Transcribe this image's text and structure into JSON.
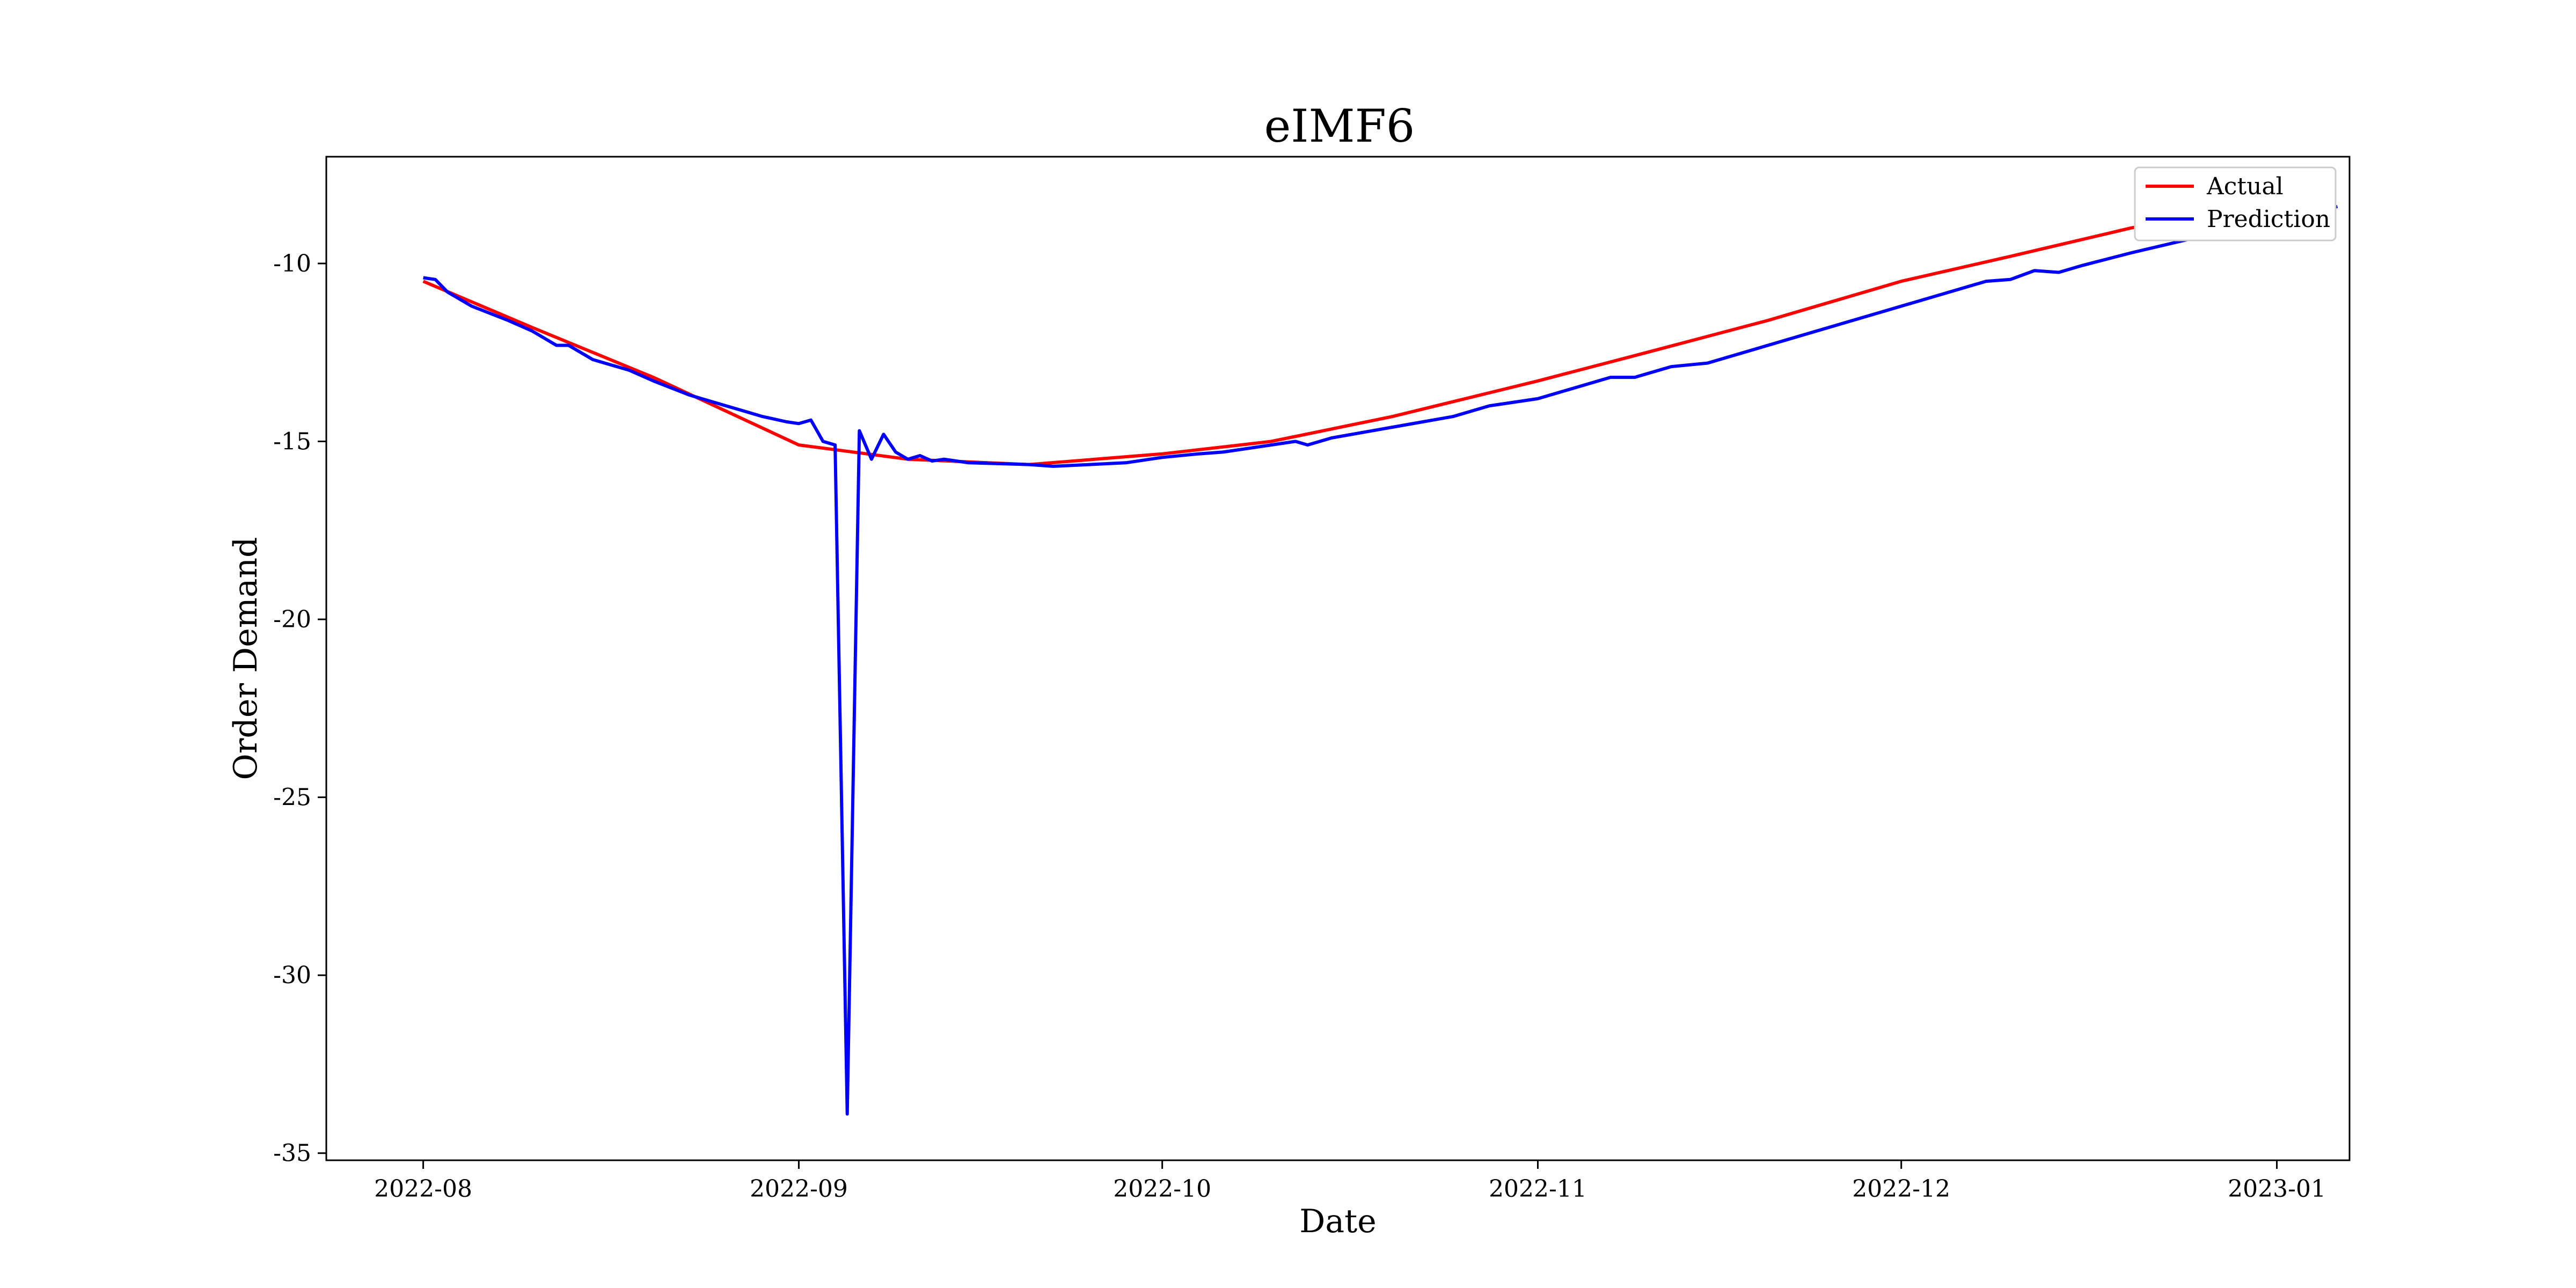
{
  "chart_data": {
    "type": "line",
    "title": "eIMF6",
    "xlabel": "Date",
    "ylabel": "Order Demand",
    "x_ticks": [
      "2022-08",
      "2022-09",
      "2022-10",
      "2022-11",
      "2022-12",
      "2023-01"
    ],
    "y_ticks": [
      "-10",
      "-15",
      "-20",
      "-25",
      "-30",
      "-35"
    ],
    "xlim": [
      "2022-07-24",
      "2023-01-07"
    ],
    "ylim": [
      -35.2,
      -7.0
    ],
    "legend_position": "top-right",
    "series": [
      {
        "name": "Actual",
        "color": "#ff0000",
        "points": [
          [
            "2022-08-01",
            -10.5
          ],
          [
            "2022-08-10",
            -11.8
          ],
          [
            "2022-08-20",
            -13.2
          ],
          [
            "2022-09-01",
            -15.1
          ],
          [
            "2022-09-10",
            -15.5
          ],
          [
            "2022-09-20",
            -15.65
          ],
          [
            "2022-10-01",
            -15.35
          ],
          [
            "2022-10-10",
            -15.0
          ],
          [
            "2022-10-20",
            -14.3
          ],
          [
            "2022-11-01",
            -13.3
          ],
          [
            "2022-11-10",
            -12.5
          ],
          [
            "2022-11-20",
            -11.6
          ],
          [
            "2022-12-01",
            -10.5
          ],
          [
            "2022-12-10",
            -9.8
          ],
          [
            "2022-12-20",
            -9.0
          ],
          [
            "2023-01-01",
            -8.3
          ]
        ]
      },
      {
        "name": "Prediction",
        "color": "#0000ff",
        "points": [
          [
            "2022-08-01",
            -10.4
          ],
          [
            "2022-08-02",
            -10.45
          ],
          [
            "2022-08-03",
            -10.8
          ],
          [
            "2022-08-05",
            -11.2
          ],
          [
            "2022-08-08",
            -11.6
          ],
          [
            "2022-08-10",
            -11.9
          ],
          [
            "2022-08-12",
            -12.3
          ],
          [
            "2022-08-13",
            -12.3
          ],
          [
            "2022-08-15",
            -12.7
          ],
          [
            "2022-08-18",
            -13.0
          ],
          [
            "2022-08-20",
            -13.3
          ],
          [
            "2022-08-23",
            -13.7
          ],
          [
            "2022-08-26",
            -14.0
          ],
          [
            "2022-08-29",
            -14.3
          ],
          [
            "2022-08-31",
            -14.45
          ],
          [
            "2022-09-01",
            -14.5
          ],
          [
            "2022-09-02",
            -14.4
          ],
          [
            "2022-09-03",
            -15.0
          ],
          [
            "2022-09-04",
            -15.1
          ],
          [
            "2022-09-05",
            -33.9
          ],
          [
            "2022-09-06",
            -14.7
          ],
          [
            "2022-09-07",
            -15.5
          ],
          [
            "2022-09-08",
            -14.8
          ],
          [
            "2022-09-09",
            -15.3
          ],
          [
            "2022-09-10",
            -15.5
          ],
          [
            "2022-09-11",
            -15.4
          ],
          [
            "2022-09-12",
            -15.55
          ],
          [
            "2022-09-13",
            -15.5
          ],
          [
            "2022-09-15",
            -15.6
          ],
          [
            "2022-09-20",
            -15.65
          ],
          [
            "2022-09-22",
            -15.7
          ],
          [
            "2022-09-25",
            -15.65
          ],
          [
            "2022-09-28",
            -15.6
          ],
          [
            "2022-10-01",
            -15.45
          ],
          [
            "2022-10-04",
            -15.35
          ],
          [
            "2022-10-06",
            -15.3
          ],
          [
            "2022-10-08",
            -15.2
          ],
          [
            "2022-10-10",
            -15.1
          ],
          [
            "2022-10-12",
            -15.0
          ],
          [
            "2022-10-13",
            -15.1
          ],
          [
            "2022-10-15",
            -14.9
          ],
          [
            "2022-10-20",
            -14.6
          ],
          [
            "2022-10-25",
            -14.3
          ],
          [
            "2022-10-28",
            -14.0
          ],
          [
            "2022-11-01",
            -13.8
          ],
          [
            "2022-11-04",
            -13.5
          ],
          [
            "2022-11-07",
            -13.2
          ],
          [
            "2022-11-09",
            -13.2
          ],
          [
            "2022-11-12",
            -12.9
          ],
          [
            "2022-11-15",
            -12.8
          ],
          [
            "2022-11-18",
            -12.5
          ],
          [
            "2022-11-21",
            -12.2
          ],
          [
            "2022-11-25",
            -11.8
          ],
          [
            "2022-11-30",
            -11.3
          ],
          [
            "2022-12-05",
            -10.8
          ],
          [
            "2022-12-08",
            -10.5
          ],
          [
            "2022-12-10",
            -10.45
          ],
          [
            "2022-12-12",
            -10.2
          ],
          [
            "2022-12-14",
            -10.25
          ],
          [
            "2022-12-16",
            -10.05
          ],
          [
            "2022-12-20",
            -9.7
          ],
          [
            "2022-12-25",
            -9.3
          ],
          [
            "2023-01-01",
            -8.8
          ],
          [
            "2023-01-04",
            -8.6
          ],
          [
            "2023-01-06",
            -8.4
          ]
        ]
      }
    ]
  }
}
